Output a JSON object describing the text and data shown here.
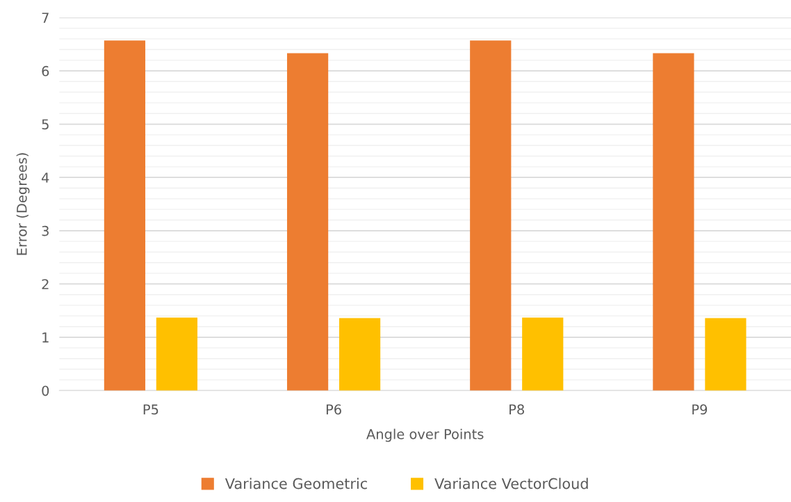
{
  "chart_data": {
    "type": "bar",
    "xlabel": "Angle over Points",
    "ylabel": "Error (Degrees)",
    "categories": [
      "P5",
      "P6",
      "P8",
      "P9"
    ],
    "series": [
      {
        "name": "Variance Geometric",
        "color": "#ed7d31",
        "values": [
          6.57,
          6.33,
          6.57,
          6.33
        ]
      },
      {
        "name": "Variance VectorCloud",
        "color": "#ffc000",
        "values": [
          1.37,
          1.36,
          1.37,
          1.36
        ]
      }
    ],
    "ylim": [
      0,
      7
    ],
    "yticks": [
      0,
      {
        "value": 0.2,
        "label": null
      },
      {
        "value": 0.4,
        "label": null
      },
      {
        "value": 0.6,
        "label": null
      },
      {
        "value": 0.8,
        "label": null
      },
      1,
      {
        "value": 1.2,
        "label": null
      },
      {
        "value": 1.4,
        "label": null
      },
      {
        "value": 1.6,
        "label": null
      },
      {
        "value": 1.8,
        "label": null
      },
      2,
      {
        "value": 2.2,
        "label": null
      },
      {
        "value": 2.4,
        "label": null
      },
      {
        "value": 2.6,
        "label": null
      },
      {
        "value": 2.8,
        "label": null
      },
      3,
      {
        "value": 3.2,
        "label": null
      },
      {
        "value": 3.4,
        "label": null
      },
      {
        "value": 3.6,
        "label": null
      },
      {
        "value": 3.8,
        "label": null
      },
      4,
      {
        "value": 4.2,
        "label": null
      },
      {
        "value": 4.4,
        "label": null
      },
      {
        "value": 4.6,
        "label": null
      },
      {
        "value": 4.8,
        "label": null
      },
      5,
      {
        "value": 5.2,
        "label": null
      },
      {
        "value": 5.4,
        "label": null
      },
      {
        "value": 5.6,
        "label": null
      },
      {
        "value": 5.8,
        "label": null
      },
      6,
      {
        "value": 6.2,
        "label": null
      },
      {
        "value": 6.4,
        "label": null
      },
      {
        "value": 6.6,
        "label": null
      },
      {
        "value": 6.8,
        "label": null
      },
      7
    ],
    "grid": "y",
    "legend": "bottom"
  }
}
